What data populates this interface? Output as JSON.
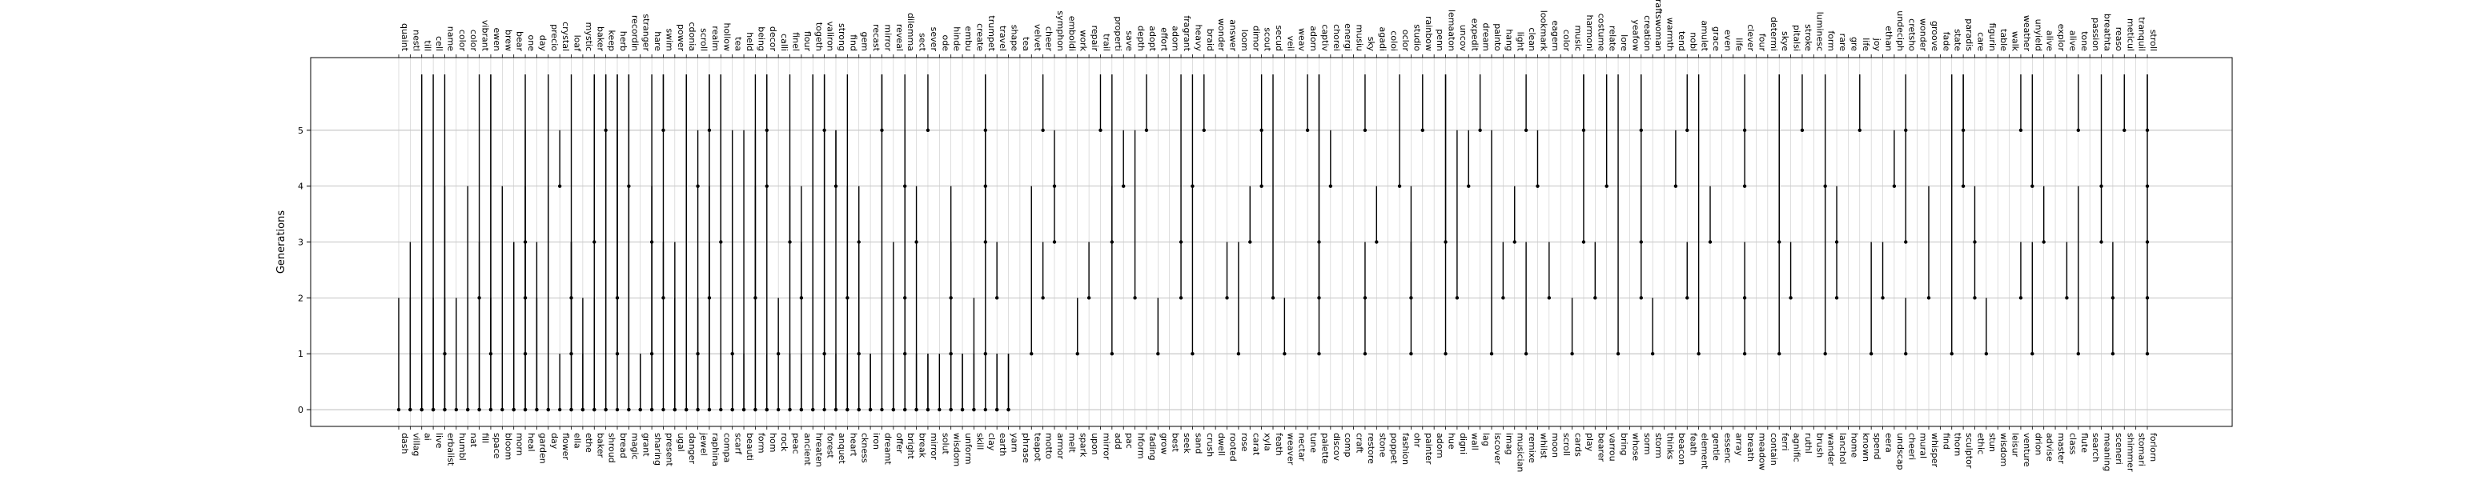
{
  "chart_data": {
    "type": "line",
    "title": "",
    "xlabel": "",
    "ylabel": "Generations",
    "yticks": [
      0,
      1,
      2,
      3,
      4,
      5
    ],
    "ylim": [
      -0.3,
      6.3
    ],
    "grid": true,
    "bottom_labels": [
      "dash",
      "villag",
      "ai",
      "live",
      "erbalist",
      "humbl",
      "nat",
      "fill",
      "space",
      "bloom",
      "morn",
      "heal",
      "garden",
      "day",
      "flower",
      "ella",
      "ethe",
      "baker",
      "shroud",
      "bread",
      "magic",
      "grant",
      "sharing",
      "present",
      "ugal",
      "danger",
      "jewel",
      "raphina",
      "compa",
      "scarf",
      "beauti",
      "form",
      "hom",
      "rock",
      "peac",
      "ancient",
      "hreaten",
      "forest",
      "anquet",
      "heart",
      "ckness",
      "iron",
      "dreamt",
      "offer",
      "bright",
      "break",
      "mirror",
      "solut",
      "wisdom",
      "unform",
      "skill",
      "clay",
      "earth",
      "yarn",
      "phrase",
      "teapot",
      "motto",
      "armor",
      "melt",
      "spark",
      "upon",
      "mirror",
      "add",
      "pac",
      "hform",
      "fading",
      "grow",
      "best",
      "seek",
      "sand",
      "crush",
      "dwell",
      "rooted",
      "rose",
      "carat",
      "xyla",
      "feath",
      "weaver",
      "nectar",
      "tune",
      "palette",
      "discov",
      "comp",
      "craft",
      "restore",
      "stone",
      "poppet",
      "fashion",
      "ohr",
      "painter",
      "adorn",
      "hue",
      "digni",
      "wall",
      "lag",
      "iscover",
      "imag",
      "musician",
      "remixe",
      "whilst",
      "moon",
      "scroll",
      "cards",
      "play",
      "bearer",
      "varrou",
      "bring",
      "whose",
      "sorm",
      "storm",
      "thinks",
      "beacon",
      "feath",
      "element",
      "gentle",
      "essenc",
      "array",
      "breath",
      "meadow",
      "contain",
      "ferri",
      "agnific",
      "ruthl",
      "brush",
      "wander",
      "lanchol",
      "home",
      "known",
      "spend",
      "eera",
      "undscap",
      "cheeri",
      "mural",
      "whisper",
      "find",
      "thorn",
      "sculptor",
      "ethic",
      "stun",
      "wisdom",
      "leisur",
      "venture",
      "drion",
      "advise",
      "master",
      "class",
      "flute",
      "search",
      "meaning",
      "sceneri",
      "shimmer",
      "stomari",
      "forlorn"
    ],
    "top_labels": [
      "quaint",
      "nestl",
      "till",
      "cell",
      "name",
      "color",
      "color",
      "vibrant",
      "ewen",
      "brew",
      "bear",
      "one",
      "day",
      "precio",
      "crystal",
      "loaf",
      "mystic",
      "baker",
      "keep",
      "herb",
      "recordin",
      "stranger",
      "hare",
      "swim",
      "power",
      "cdonia",
      "scroll",
      "realm",
      "hollow",
      "tea",
      "held",
      "being",
      "decor",
      "calli",
      "finel",
      "flour",
      "togeth",
      "valiron",
      "strong",
      "find",
      "gem",
      "recast",
      "mirror",
      "reveal",
      "dilemma",
      "sect",
      "sever",
      "ode",
      "hinde",
      "embu",
      "create",
      "trumpet",
      "travel",
      "shape",
      "tea",
      "velvet",
      "cheer",
      "symphon",
      "emboldi",
      "work",
      "repair",
      "trail",
      "properti",
      "save",
      "depth",
      "adopt",
      "effort",
      "adorn",
      "fragrant",
      "heavy",
      "braid",
      "wonder",
      "answer",
      "loom",
      "dimor",
      "scout",
      "secud",
      "veil",
      "weav",
      "adorn",
      "captiv",
      "chorei",
      "energi",
      "musiu",
      "sky",
      "agadi",
      "coloi",
      "oclor",
      "studio",
      "rainbow",
      "penn",
      "lemaaton",
      "uncov",
      "expedit",
      "dream",
      "painto",
      "hang",
      "light",
      "clean",
      "lookmark",
      "eagern",
      "color",
      "music",
      "harmoni",
      "costume",
      "relate",
      "lore",
      "yeafow",
      "creation",
      "craftswoman",
      "warmth",
      "tend",
      "nobl",
      "amulet",
      "grace",
      "even",
      "life",
      "clever",
      "four",
      "determi",
      "skye",
      "pitalsi",
      "stroke",
      "luminesc",
      "form",
      "rare",
      "gre",
      "life",
      "joy",
      "ethan",
      "undeciph",
      "cretsho",
      "wonder",
      "groove",
      "fade",
      "state",
      "paradis",
      "care",
      "figurin",
      "table",
      "walk",
      "weather",
      "unyield",
      "alive",
      "explor",
      "alive",
      "tone",
      "passion",
      "breathta",
      "reaso",
      "meticul",
      "tranquil",
      "stroll"
    ],
    "series": [
      {
        "values": [
          [
            0,
            2
          ],
          [
            0,
            3
          ],
          [
            0,
            2
          ],
          [
            0,
            1
          ],
          [
            0,
            6
          ],
          [
            0,
            6
          ],
          [
            0,
            2
          ],
          [
            0,
            4
          ],
          [
            0,
            2
          ],
          [
            0,
            2
          ],
          [
            0,
            4
          ],
          [
            0,
            2
          ],
          [
            0,
            6
          ],
          [
            0,
            2
          ],
          [
            0,
            6
          ],
          [
            0,
            6
          ],
          [
            0,
            4
          ],
          [
            0,
            3
          ],
          [
            0,
            3
          ],
          [
            0,
            1
          ],
          [
            0,
            3
          ],
          [
            0,
            3
          ],
          [
            0,
            2
          ],
          [
            0,
            4
          ],
          [
            0,
            6
          ],
          [
            0,
            1
          ],
          [
            0,
            6
          ],
          [
            0,
            3
          ],
          [
            0,
            2
          ],
          [
            0,
            1
          ],
          [
            0,
            2
          ],
          [
            0,
            6
          ],
          [
            0,
            6
          ],
          [
            0,
            5
          ],
          [
            0,
            6
          ],
          [
            0,
            4
          ],
          [
            0,
            6
          ],
          [
            0,
            1
          ],
          [
            0,
            1
          ],
          [
            0,
            4
          ],
          [
            0,
            6
          ],
          [
            0,
            6
          ],
          [
            0,
            2
          ],
          [
            0,
            3
          ],
          [
            0,
            6
          ],
          [
            0,
            6
          ],
          [
            0,
            1
          ],
          [
            0,
            4
          ],
          [
            0,
            6
          ],
          [
            0,
            4
          ],
          [
            0,
            6
          ],
          [
            0,
            5
          ],
          [
            0,
            2
          ],
          [
            0,
            5
          ],
          [
            0,
            1
          ],
          [
            0,
            5
          ],
          [
            0,
            6
          ],
          [
            0,
            1
          ],
          [
            0,
            4
          ],
          [
            0,
            1
          ],
          [
            0,
            6
          ],
          [
            0,
            1
          ],
          [
            0,
            4
          ],
          [
            0,
            1
          ],
          [
            0,
            6
          ],
          [
            0,
            6
          ],
          [
            0,
            5
          ],
          [
            0,
            1
          ],
          [
            0,
            5
          ],
          [
            0,
            4
          ],
          [
            0,
            1
          ],
          [
            0,
            3
          ],
          [
            0,
            2
          ],
          [
            0,
            1
          ],
          [
            0,
            1
          ],
          [
            0,
            6
          ],
          [
            0,
            1
          ],
          [
            0,
            3
          ],
          [
            0,
            1
          ],
          [
            0,
            6
          ],
          [
            0,
            1
          ],
          [
            0,
            3
          ],
          [
            0,
            1
          ],
          [
            0,
            1
          ],
          [
            0,
            1
          ],
          [
            0,
            1
          ],
          [
            0,
            4
          ],
          [
            0,
            1
          ],
          [
            0,
            1
          ],
          [
            0,
            1
          ],
          [
            0,
            2
          ],
          [
            0,
            1
          ],
          [
            0,
            1
          ],
          [
            0,
            1
          ],
          [
            0,
            1
          ],
          [
            0,
            1
          ]
        ]
      },
      {
        "values": [
          [
            1,
            6
          ],
          [
            1,
            2
          ],
          [
            1,
            5
          ],
          [
            1,
            2
          ],
          [
            1,
            6
          ],
          [
            1,
            3
          ],
          [
            1,
            2
          ],
          [
            1,
            4
          ],
          [
            1,
            2
          ],
          [
            1,
            6
          ],
          [
            1,
            3
          ],
          [
            1,
            2
          ],
          [
            1,
            2
          ],
          [
            1,
            5
          ],
          [
            1,
            4
          ],
          [
            1,
            2
          ],
          [
            1,
            6
          ],
          [
            1,
            2
          ],
          [
            1,
            4
          ],
          [
            1,
            3
          ],
          [
            1,
            2
          ],
          [
            1,
            6
          ],
          [
            1,
            2
          ],
          [
            1,
            4
          ],
          [
            1,
            6
          ],
          [
            1,
            5
          ],
          [
            1,
            3
          ],
          [
            1,
            2
          ],
          [
            1,
            6
          ],
          [
            1,
            2
          ],
          [
            1,
            6
          ],
          [
            1,
            2
          ],
          [
            1,
            6
          ],
          [
            1,
            4
          ],
          [
            1,
            3
          ],
          [
            1,
            2
          ],
          [
            1,
            6
          ],
          [
            1,
            2
          ],
          [
            1,
            3
          ],
          [
            1,
            4
          ],
          [
            1,
            2
          ],
          [
            1,
            2
          ]
        ]
      },
      {
        "values": [
          [
            2,
            3
          ],
          [
            2,
            6
          ],
          [
            2,
            3
          ],
          [
            2,
            5
          ],
          [
            2,
            3
          ],
          [
            2,
            3
          ],
          [
            2,
            4
          ],
          [
            2,
            3
          ],
          [
            2,
            6
          ],
          [
            2,
            4
          ],
          [
            2,
            3
          ],
          [
            2,
            3
          ],
          [
            2,
            3
          ],
          [
            2,
            3
          ],
          [
            2,
            5
          ],
          [
            2,
            3
          ],
          [
            2,
            3
          ],
          [
            2,
            6
          ],
          [
            2,
            3
          ],
          [
            2,
            3
          ],
          [
            2,
            3
          ],
          [
            2,
            5
          ],
          [
            2,
            3
          ],
          [
            2,
            3
          ],
          [
            2,
            3
          ],
          [
            2,
            6
          ],
          [
            2,
            3
          ],
          [
            2,
            3
          ],
          [
            2,
            3
          ],
          [
            2,
            3
          ],
          [
            2,
            3
          ],
          [
            2,
            4
          ],
          [
            2,
            3
          ],
          [
            2,
            3
          ],
          [
            2,
            3
          ],
          [
            2,
            3
          ],
          [
            2,
            3
          ]
        ]
      },
      {
        "values": [
          [
            3,
            4
          ],
          [
            3,
            6
          ],
          [
            3,
            4
          ],
          [
            3,
            6
          ],
          [
            3,
            4
          ],
          [
            3,
            4
          ],
          [
            3,
            4
          ],
          [
            3,
            6
          ],
          [
            3,
            4
          ],
          [
            3,
            4
          ],
          [
            3,
            6
          ],
          [
            3,
            4
          ],
          [
            3,
            6
          ],
          [
            3,
            4
          ],
          [
            3,
            6
          ],
          [
            3,
            4
          ],
          [
            3,
            6
          ],
          [
            3,
            4
          ],
          [
            3,
            4
          ],
          [
            3,
            6
          ],
          [
            3,
            4
          ],
          [
            3,
            5
          ],
          [
            3,
            4
          ],
          [
            3,
            4
          ],
          [
            3,
            4
          ],
          [
            3,
            4
          ]
        ]
      },
      {
        "values": [
          [
            4,
            5
          ],
          [
            4,
            6
          ],
          [
            4,
            5
          ],
          [
            4,
            6
          ],
          [
            4,
            5
          ],
          [
            4,
            5
          ],
          [
            4,
            6
          ],
          [
            4,
            5
          ],
          [
            4,
            5
          ],
          [
            4,
            6
          ],
          [
            4,
            5
          ],
          [
            4,
            5
          ],
          [
            4,
            6
          ],
          [
            4,
            5
          ],
          [
            4,
            5
          ],
          [
            4,
            6
          ],
          [
            4,
            5
          ],
          [
            4,
            5
          ],
          [
            4,
            6
          ],
          [
            4,
            5
          ],
          [
            4,
            6
          ],
          [
            4,
            6
          ],
          [
            4,
            6
          ],
          [
            4,
            6
          ]
        ]
      },
      {
        "values": [
          [
            5,
            6
          ],
          [
            5,
            6
          ],
          [
            5,
            6
          ],
          [
            5,
            6
          ],
          [
            5,
            6
          ],
          [
            5,
            6
          ],
          [
            5,
            6
          ],
          [
            5,
            6
          ],
          [
            5,
            6
          ],
          [
            5,
            6
          ],
          [
            5,
            6
          ],
          [
            5,
            6
          ],
          [
            5,
            6
          ],
          [
            5,
            6
          ],
          [
            5,
            6
          ],
          [
            5,
            6
          ],
          [
            5,
            6
          ],
          [
            5,
            6
          ],
          [
            5,
            6
          ],
          [
            5,
            6
          ],
          [
            5,
            6
          ],
          [
            5,
            6
          ],
          [
            5,
            6
          ],
          [
            5,
            6
          ],
          [
            5,
            6
          ],
          [
            5,
            6
          ],
          [
            5,
            6
          ],
          [
            5,
            6
          ],
          [
            5,
            6
          ],
          [
            5,
            6
          ]
        ]
      }
    ],
    "annotations": []
  }
}
